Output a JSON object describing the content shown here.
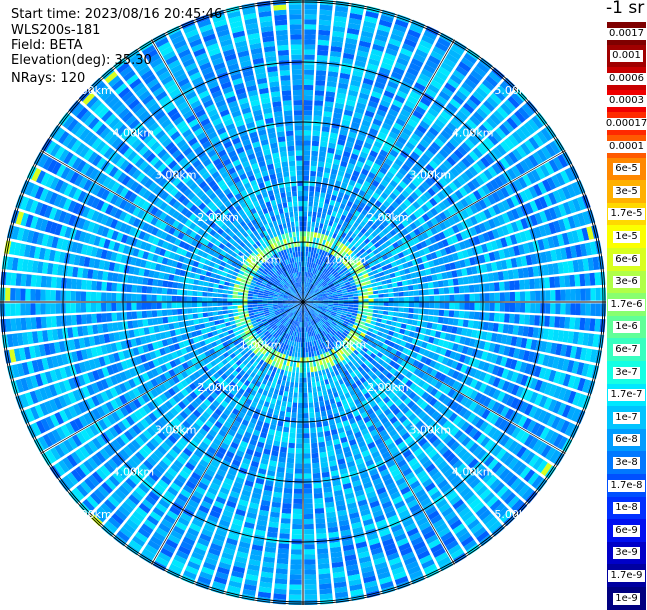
{
  "info": {
    "start_time": "Start time: 2023/08/16 20:45:46",
    "instrument": "WLS200s-181",
    "field": "Field: BETA",
    "elevation": "Elevation(deg): 35.30",
    "nrays": "NRays: 120"
  },
  "colorbar": {
    "title": "-1 sr",
    "labels": [
      "0.0017",
      "0.001",
      "0.0006",
      "0.0003",
      "0.00017",
      "0.0001",
      "6e-5",
      "3e-5",
      "1.7e-5",
      "1e-5",
      "6e-6",
      "3e-6",
      "1.7e-6",
      "1e-6",
      "6e-7",
      "3e-7",
      "1.7e-7",
      "1e-7",
      "6e-8",
      "3e-8",
      "1.7e-8",
      "1e-8",
      "6e-9",
      "3e-9",
      "1.7e-9",
      "1e-9"
    ],
    "colors": [
      "#7f0000",
      "#a00000",
      "#c80000",
      "#f00000",
      "#ff2a00",
      "#ff5a00",
      "#ff8800",
      "#ffb000",
      "#ffd800",
      "#fbff00",
      "#d8ff1f",
      "#b0ff48",
      "#88ff70",
      "#60ff98",
      "#38ffc0",
      "#14ffe4",
      "#00e8ff",
      "#00c4ff",
      "#009cff",
      "#0078ff",
      "#0050ff",
      "#0030ff",
      "#0010f0",
      "#0000c8",
      "#0000a0",
      "#000080"
    ]
  },
  "ring_labels": [
    "1.00km",
    "2.00km",
    "3.00km",
    "4.00km",
    "5.00km"
  ],
  "chart_data": {
    "type": "heatmap",
    "projection": "polar PPI",
    "field": "BETA",
    "elevation_deg": 35.3,
    "n_rays": 120,
    "range_rings_km": [
      1,
      2,
      3,
      4,
      5
    ],
    "max_range_km": 5.0,
    "color_scale": "log",
    "colorbar_range": [
      1e-09,
      0.0017
    ],
    "dominant_level": "1.7e-8 to 1e-7",
    "high_backscatter_ring_km": 1.05,
    "high_backscatter_level": "1e-6 to 1e-5"
  }
}
